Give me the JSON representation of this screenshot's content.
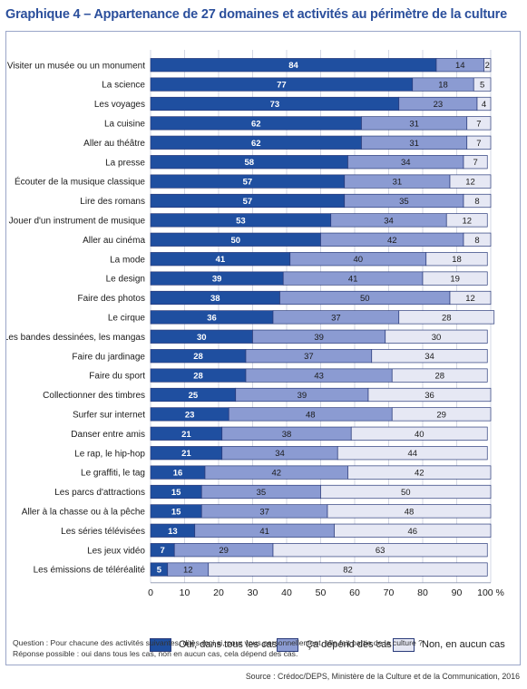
{
  "title": "Graphique 4 – Appartenance de 27 domaines et activités au périmètre de la culture",
  "question": "Question : Pour chacune des activités suivantes, dites-moi si, pour vous personnellement, elle fait partie de la culture ?",
  "answers_note": "Réponse possible : oui dans tous les cas, non en aucun cas, cela dépend des cas.",
  "source": "Source : Crédoc/DEPS, Ministère de la Culture et de la Communication, 2016",
  "colors": {
    "oui": "#1f4fa0",
    "depend": "#8b9bd2",
    "non": "#e6e8f4",
    "title": "#2b4f9c"
  },
  "chart_data": {
    "type": "bar",
    "orientation": "horizontal",
    "stacked": true,
    "xlim": [
      0,
      100
    ],
    "x_ticks": [
      "0",
      "10",
      "20",
      "30",
      "40",
      "50",
      "60",
      "70",
      "80",
      "90",
      "100 %"
    ],
    "grid": true,
    "legend_position": "bottom",
    "categories": [
      "Visiter un musée ou un monument",
      "La science",
      "Les voyages",
      "La cuisine",
      "Aller au théâtre",
      "La presse",
      "Écouter de la musique classique",
      "Lire des romans",
      "Jouer d'un instrument de musique",
      "Aller au cinéma",
      "La mode",
      "Le design",
      "Faire des photos",
      "Le cirque",
      "Les bandes dessinées, les mangas",
      "Faire du jardinage",
      "Faire du sport",
      "Collectionner des timbres",
      "Surfer sur internet",
      "Danser entre amis",
      "Le rap, le hip-hop",
      "Le graffiti, le tag",
      "Les parcs d'attractions",
      "Aller à la chasse ou à la pêche",
      "Les séries télévisées",
      "Les jeux vidéo",
      "Les émissions de téléréalité"
    ],
    "series": [
      {
        "name": "Oui, dans tous les cas",
        "values": [
          84,
          77,
          73,
          62,
          62,
          58,
          57,
          57,
          53,
          50,
          41,
          39,
          38,
          36,
          30,
          28,
          28,
          25,
          23,
          21,
          21,
          16,
          15,
          15,
          13,
          7,
          5
        ]
      },
      {
        "name": "Ça dépend des cas",
        "values": [
          14,
          18,
          23,
          31,
          31,
          34,
          31,
          35,
          34,
          42,
          40,
          41,
          50,
          37,
          39,
          37,
          43,
          39,
          48,
          38,
          34,
          42,
          35,
          37,
          41,
          29,
          12
        ]
      },
      {
        "name": "Non, en aucun cas",
        "values": [
          2,
          5,
          4,
          7,
          7,
          7,
          12,
          8,
          12,
          8,
          18,
          19,
          12,
          28,
          30,
          34,
          28,
          36,
          29,
          40,
          44,
          42,
          50,
          48,
          46,
          63,
          82
        ]
      }
    ]
  }
}
